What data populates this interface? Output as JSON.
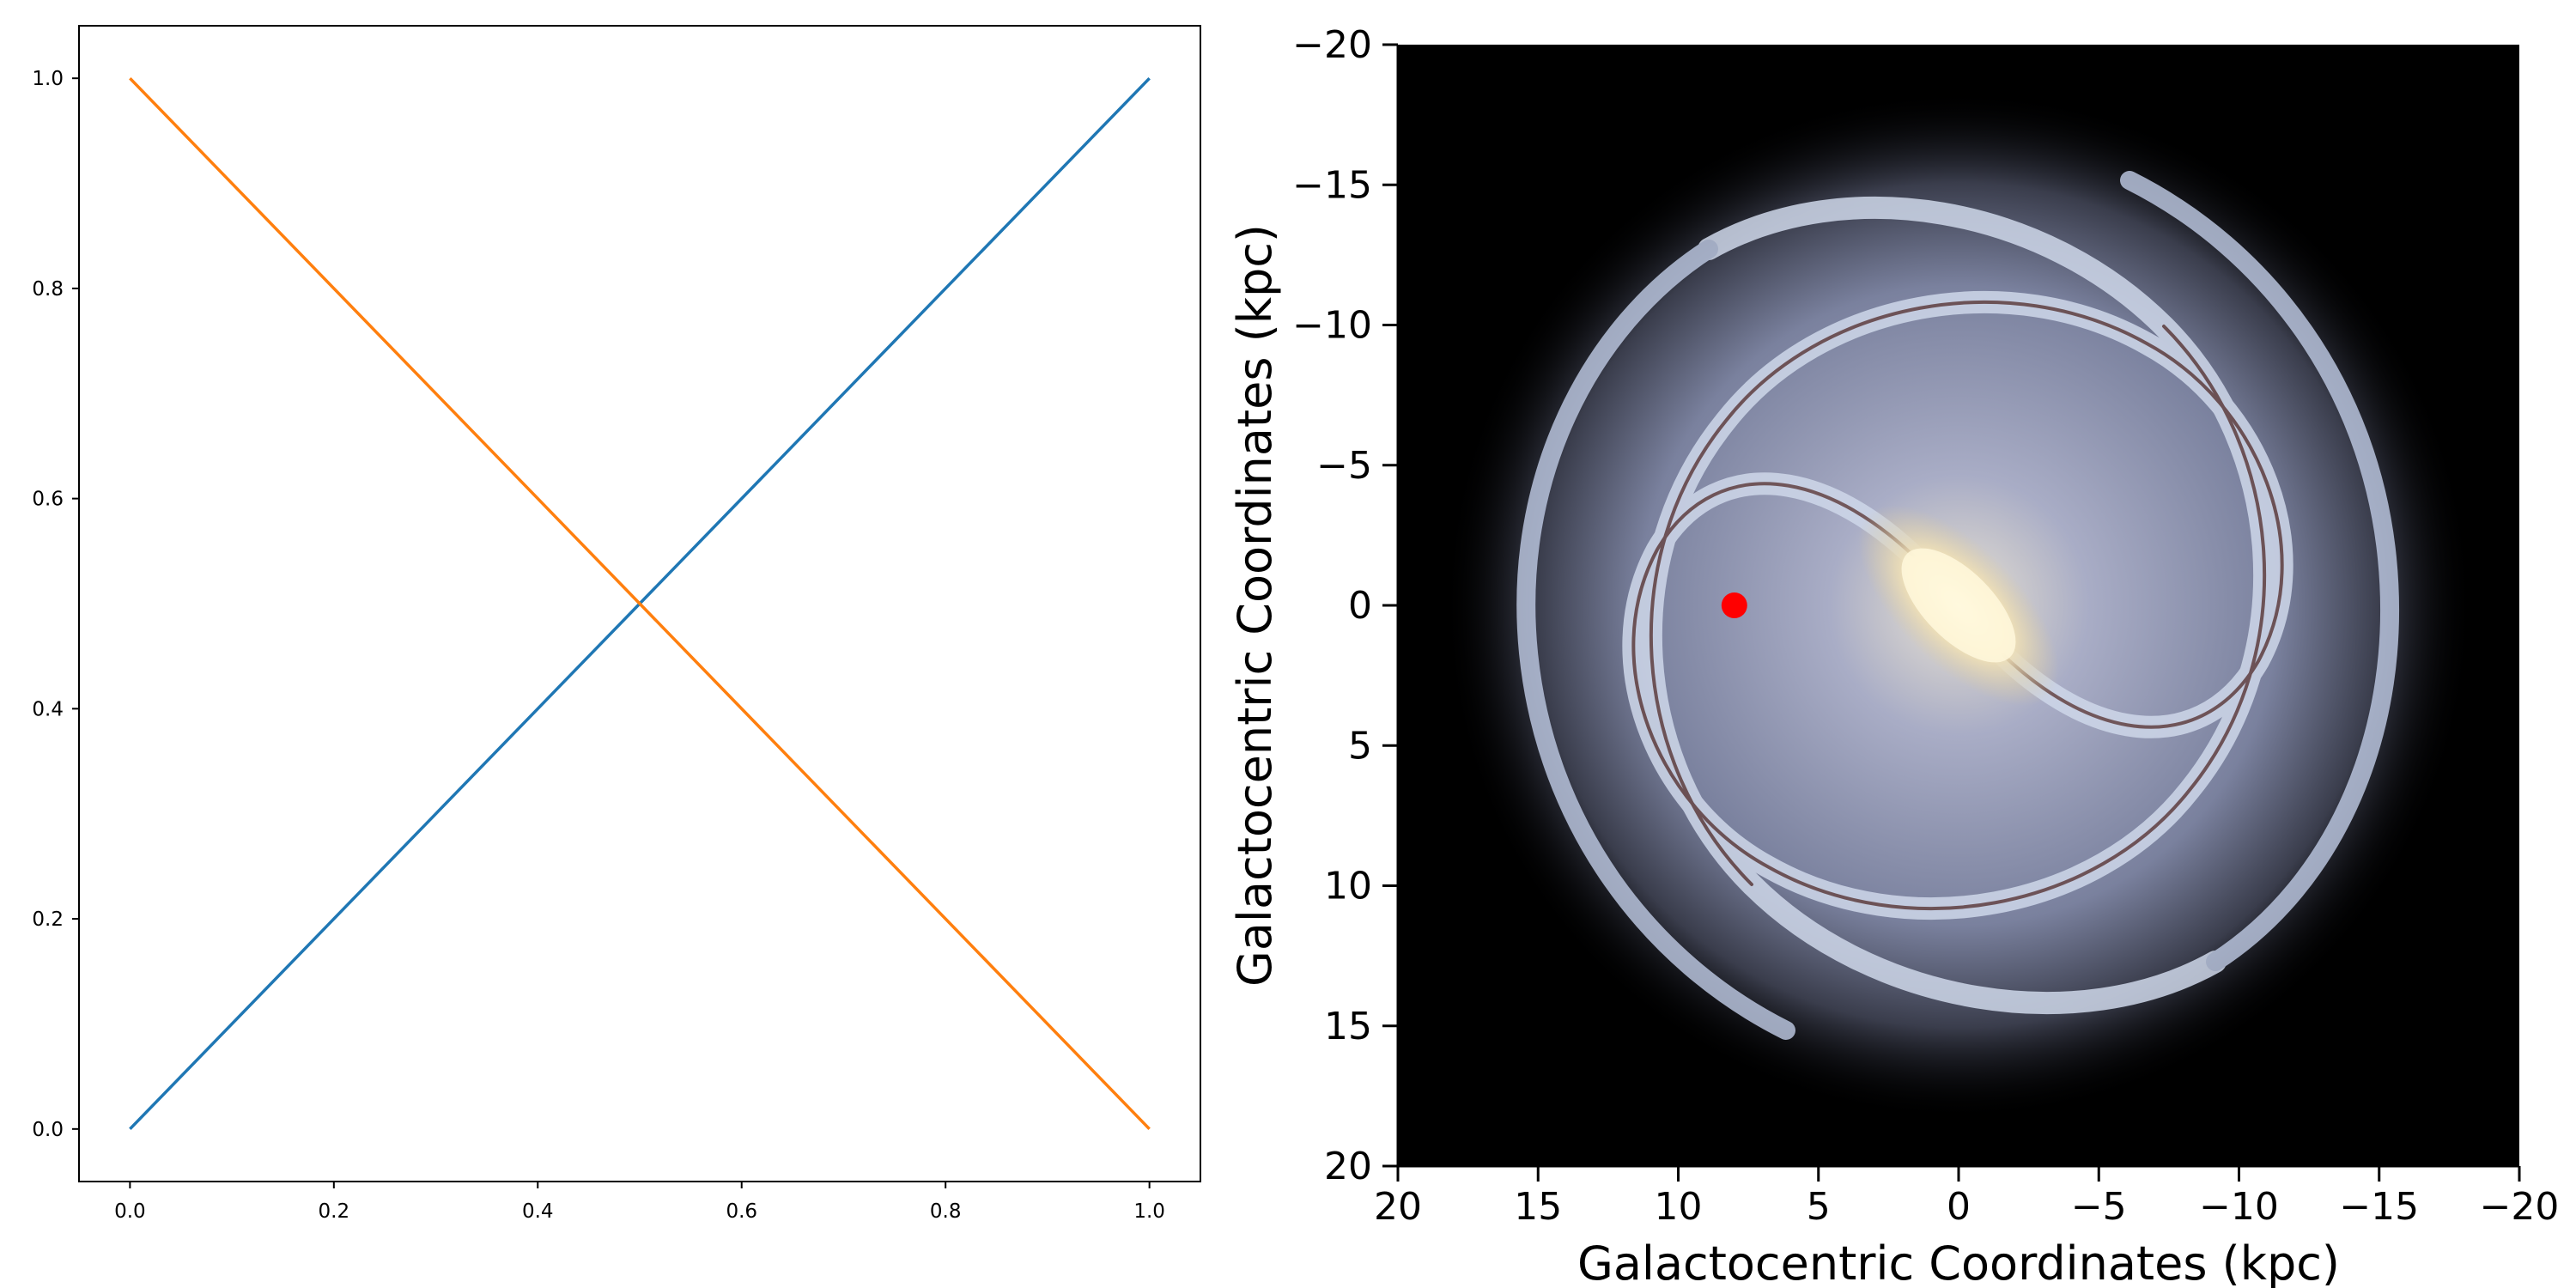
{
  "chart_data": [
    {
      "type": "line",
      "title": "",
      "xlabel": "",
      "ylabel": "",
      "xlim": [
        -0.05,
        1.05
      ],
      "ylim": [
        -0.05,
        1.05
      ],
      "x_ticks": [
        "0.0",
        "0.2",
        "0.4",
        "0.6",
        "0.8",
        "1.0"
      ],
      "y_ticks": [
        "0.0",
        "0.2",
        "0.4",
        "0.6",
        "0.8",
        "1.0"
      ],
      "grid": false,
      "series": [
        {
          "x": [
            0,
            1
          ],
          "y": [
            0,
            1
          ],
          "color": "#1f77b4"
        },
        {
          "x": [
            0,
            1
          ],
          "y": [
            1,
            0
          ],
          "color": "#ff7f0e"
        }
      ]
    },
    {
      "type": "scatter",
      "title": "",
      "background": "Milky Way spiral galaxy illustration (face-on)",
      "xlabel": "Galactocentric Coordinates (kpc)",
      "ylabel": "Galactocentric Coordinates (kpc)",
      "xlim": [
        20,
        -20
      ],
      "ylim": [
        20,
        -20
      ],
      "x_ticks": [
        "20",
        "15",
        "10",
        "5",
        "0",
        "−5",
        "−10",
        "−15",
        "−20"
      ],
      "y_ticks": [
        "−20",
        "−15",
        "−10",
        "−5",
        "0",
        "5",
        "10",
        "15",
        "20"
      ],
      "grid": false,
      "points": [
        {
          "x": 8.0,
          "y": 0.0,
          "color": "#ff0000"
        }
      ]
    }
  ]
}
